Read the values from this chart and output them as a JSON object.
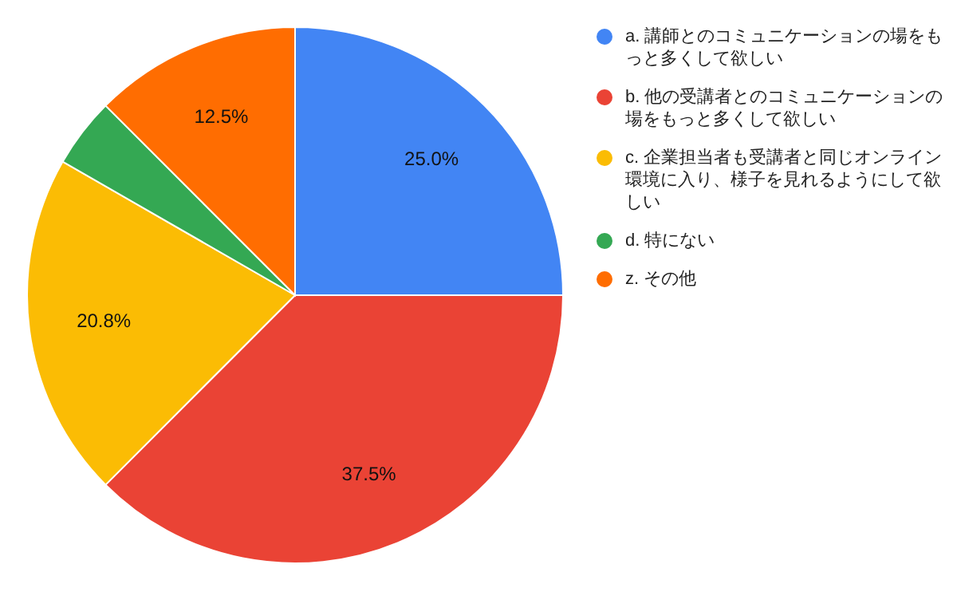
{
  "chart_data": {
    "type": "pie",
    "categories": [
      "a. 講師とのコミュニケーションの場をもっと多くして欲しい",
      "b. 他の受講者とのコミュニケーションの場をもっと多くして欲しい",
      "c. 企業担当者も受講者と同じオンライン環境に入り、様子を見れるようにして欲しい",
      "d. 特にない",
      "z. その他"
    ],
    "values": [
      25.0,
      37.5,
      20.8,
      4.2,
      12.5
    ],
    "colors": [
      "#4285f4",
      "#ea4335",
      "#fbbc04",
      "#34a853",
      "#ff6d01"
    ],
    "value_labels": [
      "25.0%",
      "37.5%",
      "20.8%",
      null,
      "12.5%"
    ],
    "legend": "right"
  }
}
